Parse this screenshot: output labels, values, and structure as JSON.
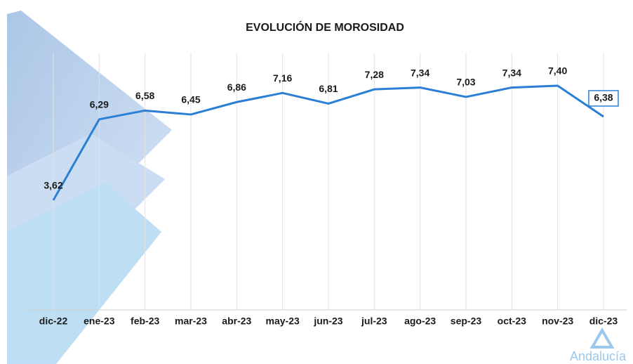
{
  "chart_data": {
    "type": "line",
    "title": "EVOLUCIÓN DE MOROSIDAD",
    "categories": [
      "dic-22",
      "ene-23",
      "feb-23",
      "mar-23",
      "abr-23",
      "may-23",
      "jun-23",
      "jul-23",
      "ago-23",
      "sep-23",
      "oct-23",
      "nov-23",
      "dic-23"
    ],
    "values": [
      3.62,
      6.29,
      6.58,
      6.45,
      6.86,
      7.16,
      6.81,
      7.28,
      7.34,
      7.03,
      7.34,
      7.4,
      6.38
    ],
    "value_labels": [
      "3,62",
      "6,29",
      "6,58",
      "6,45",
      "6,86",
      "7,16",
      "6,81",
      "7,28",
      "7,34",
      "7,03",
      "7,34",
      "7,40",
      "6,38"
    ],
    "color": "#2b7fd4",
    "ylim": [
      0,
      9
    ]
  },
  "logo": "Andalucía"
}
